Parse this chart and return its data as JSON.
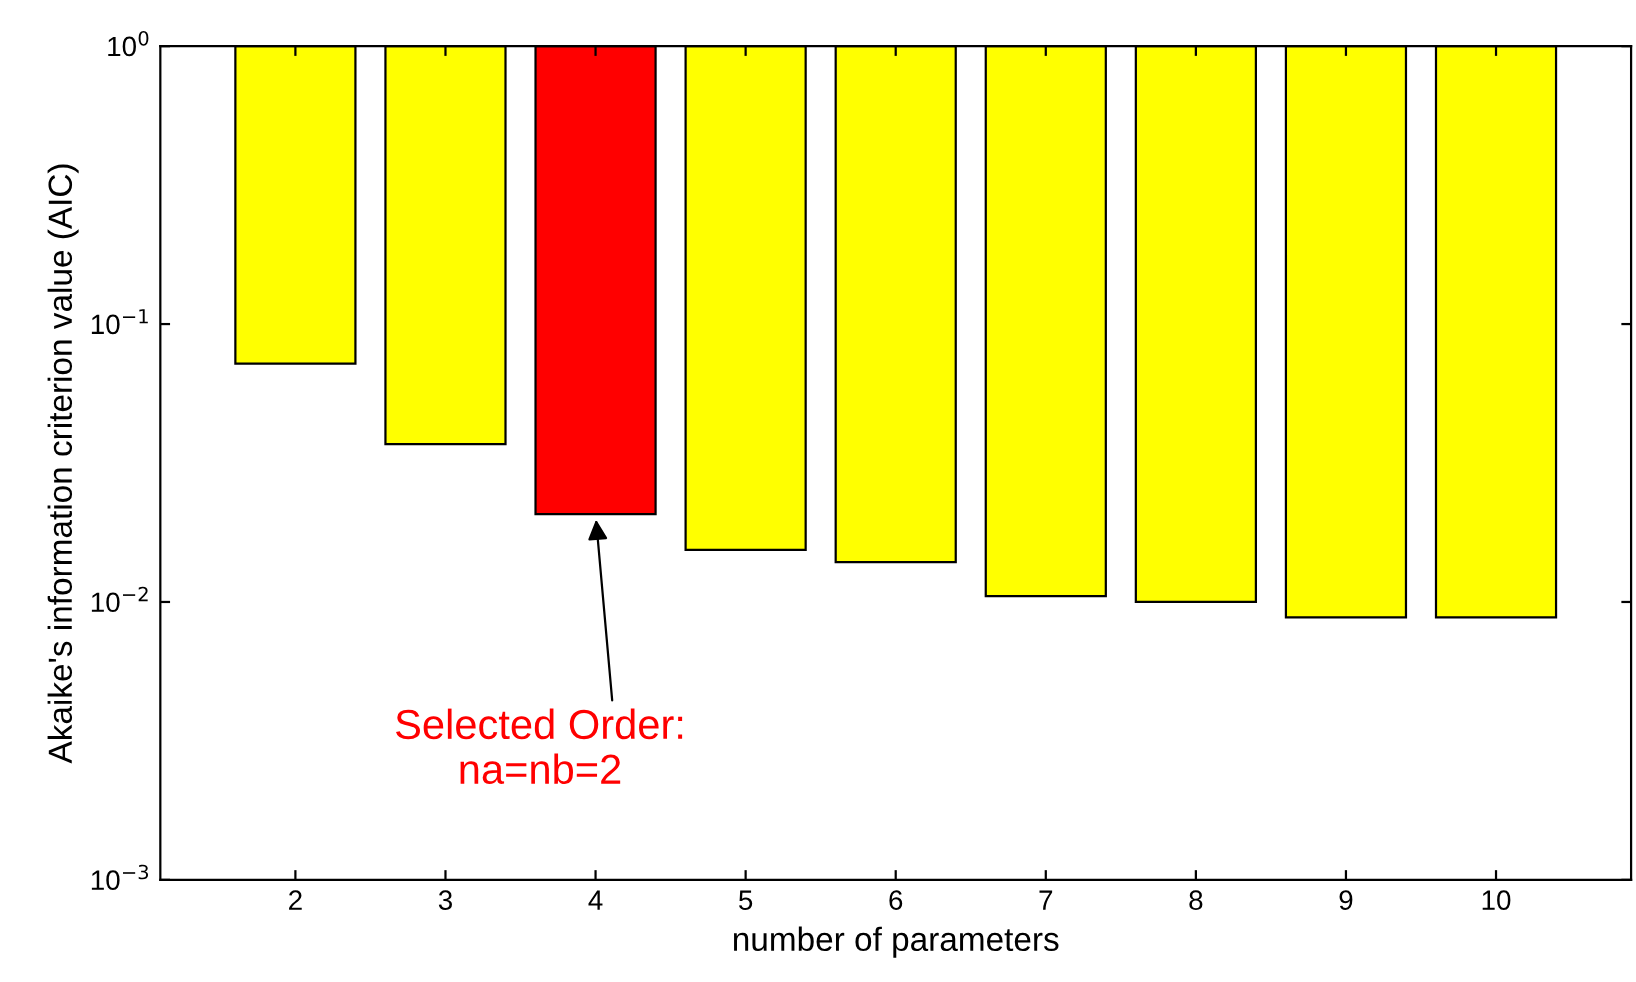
{
  "chart_data": {
    "type": "bar",
    "xlabel": "number of parameters",
    "ylabel": "Akaike's information criterion value (AIC)",
    "categories": [
      "2",
      "3",
      "4",
      "5",
      "6",
      "7",
      "8",
      "9",
      "10"
    ],
    "base": [
      1,
      1,
      1,
      1,
      1,
      1,
      1,
      1,
      1
    ],
    "values": [
      -0.928,
      -0.963,
      -0.9793,
      -0.9846,
      -0.9861,
      -0.9895,
      -0.99,
      -0.9912,
      -0.9912
    ],
    "colors": [
      "#ffff00",
      "#ffff00",
      "#ff0000",
      "#ffff00",
      "#ffff00",
      "#ffff00",
      "#ffff00",
      "#ffff00",
      "#ffff00"
    ],
    "log": true,
    "ylim": [
      0.001,
      1
    ],
    "yticks": [
      {
        "value": 0.001,
        "label": "10$^{−3}$"
      },
      {
        "value": 0.01,
        "label": "10$^{−2}$"
      },
      {
        "value": 0.1,
        "label": "10$^{−1}$"
      },
      {
        "value": 1,
        "label": "10$^{0}$"
      }
    ],
    "grid": false,
    "annotations": [
      {
        "text": "Selected Order:\nna=nb=2",
        "x": "4",
        "y": 0.0207
      }
    ]
  }
}
